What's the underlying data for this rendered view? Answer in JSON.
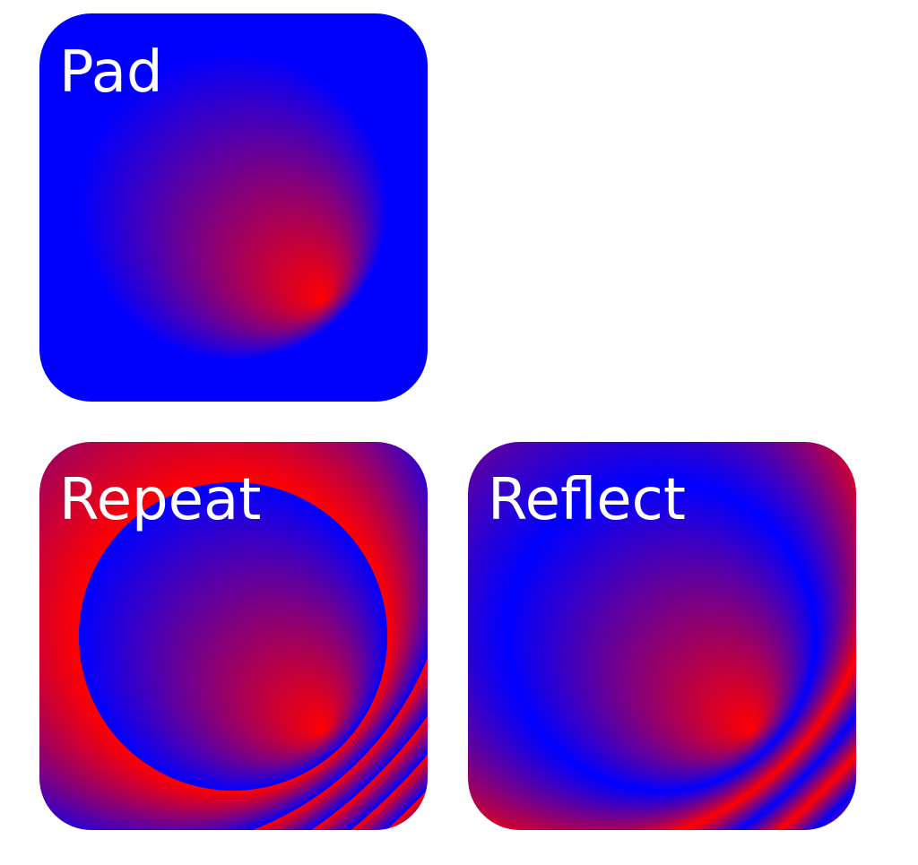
{
  "panels": [
    {
      "id": "pad",
      "label": "Pad",
      "spread_method": "pad"
    },
    {
      "id": "repeat",
      "label": "Repeat",
      "spread_method": "repeat"
    },
    {
      "id": "reflect",
      "label": "Reflect",
      "spread_method": "reflect"
    }
  ],
  "gradient": {
    "type": "radial",
    "inner_color": "#ff0000",
    "outer_color": "#0000ff"
  },
  "colors": {
    "background": "#ffffff",
    "label": "#ffffff"
  }
}
